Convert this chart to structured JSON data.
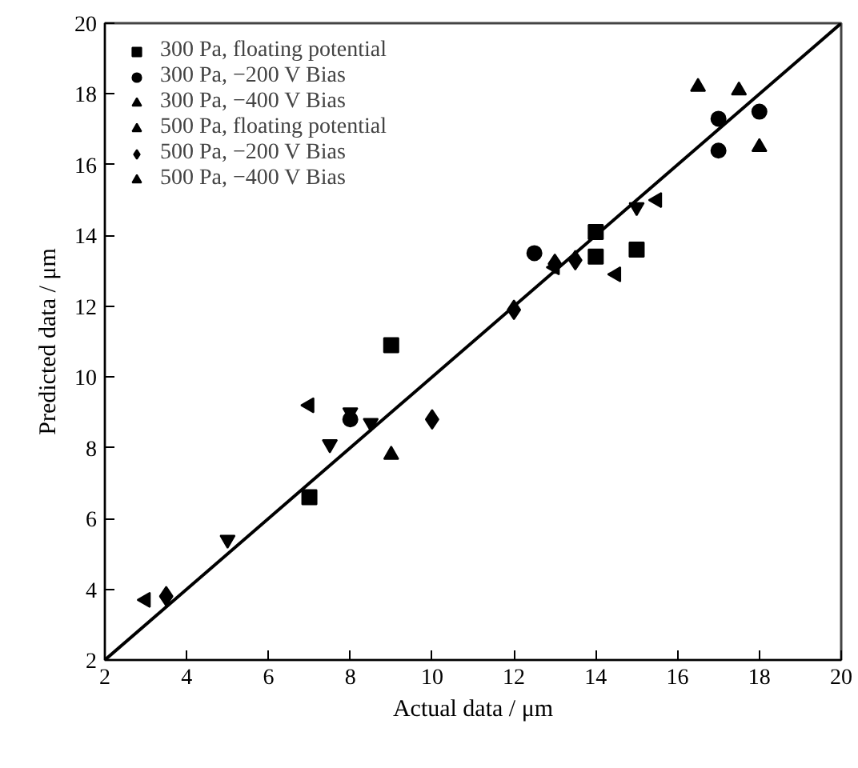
{
  "chart_data": {
    "type": "scatter",
    "xlabel": "Actual data / μm",
    "ylabel": "Predicted data / μm",
    "xlim": [
      2,
      20
    ],
    "ylim": [
      2,
      20
    ],
    "xticks": [
      2,
      4,
      6,
      8,
      10,
      12,
      14,
      16,
      18,
      20
    ],
    "yticks": [
      2,
      4,
      6,
      8,
      10,
      12,
      14,
      16,
      18,
      20
    ],
    "grid": false,
    "legend": "top left",
    "series": [
      {
        "name": "300 Pa, floating potential",
        "color": "#000000",
        "marker": "square",
        "x": [
          7,
          9,
          14,
          14,
          15
        ],
        "values": [
          6.6,
          10.9,
          13.4,
          14.1,
          13.6
        ]
      },
      {
        "name": "300 Pa, −200 V Bias",
        "color": "#000000",
        "marker": "circle",
        "x": [
          8,
          12.5,
          17,
          17,
          18
        ],
        "values": [
          8.8,
          13.5,
          17.3,
          16.4,
          17.5
        ]
      },
      {
        "name": "300 Pa, −400 V Bias",
        "color": "#000000",
        "marker": "triangle",
        "x": [
          9,
          16.5,
          17.5,
          18
        ],
        "values": [
          7.8,
          18.2,
          18.1,
          16.5
        ]
      },
      {
        "name": "500 Pa, floating potential",
        "color": "#000000",
        "marker": "triangle",
        "x": [
          5,
          7.5,
          8,
          8.5,
          15
        ],
        "values": [
          5.4,
          8.1,
          9.0,
          8.7,
          14.8
        ]
      },
      {
        "name": "500 Pa, −200 V Bias",
        "color": "#000000",
        "marker": "diamond",
        "x": [
          3.5,
          10,
          12,
          13,
          13.5
        ],
        "values": [
          3.8,
          8.8,
          11.9,
          13.2,
          13.3
        ]
      },
      {
        "name": "500 Pa, −400 V Bias",
        "color": "#000000",
        "marker": "triangle",
        "x": [
          3,
          7,
          13,
          14.5,
          15.5
        ],
        "values": [
          3.7,
          9.2,
          13.1,
          12.9,
          15.0
        ]
      },
      {
        "type": "line",
        "color": "#000000",
        "line_style": "solid",
        "x": [
          2,
          20
        ],
        "values": [
          2,
          20
        ]
      }
    ]
  }
}
